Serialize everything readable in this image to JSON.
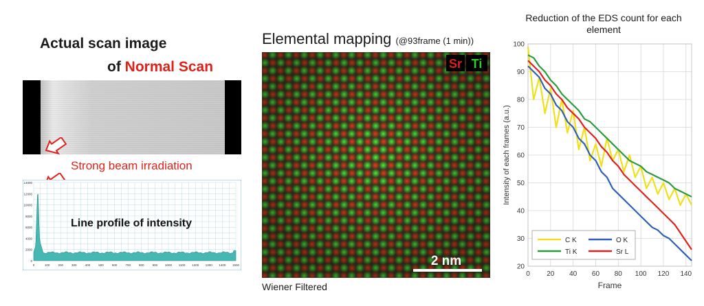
{
  "left": {
    "title_line1": "Actual scan image",
    "title_line2_prefix": "of ",
    "title_line2_highlight": "Normal Scan",
    "beam_label": "Strong beam irradiation",
    "profile_label": "Line profile of intensity",
    "profile_x_ticks": [
      "0",
      "100",
      "200",
      "300",
      "400",
      "500",
      "600",
      "700",
      "800",
      "900",
      "1000",
      "1100",
      "1200",
      "1300",
      "1400",
      "1500"
    ],
    "profile_y_ticks": [
      "0",
      "2000",
      "4000",
      "6000",
      "8000",
      "10000",
      "12000",
      "14000"
    ],
    "colors": {
      "profile_fill": "#46b8b3",
      "highlight": "#e0211b"
    }
  },
  "middle": {
    "title": "Elemental mapping",
    "subtitle": "(@93frame (1 min))",
    "legend_sr": "Sr",
    "legend_ti": "Ti",
    "scale_bar": "2 nm",
    "footer": "Wiener Filtered",
    "colors": {
      "sr": "#e0211b",
      "ti": "#2bd12b"
    }
  },
  "chart_data": {
    "type": "line",
    "title": "Reduction of the EDS count for each element",
    "xlabel": "Frame",
    "ylabel": "Intensity of each frames (a.u.)",
    "xlim": [
      0,
      145
    ],
    "ylim": [
      20,
      100
    ],
    "x_ticks": [
      "0",
      "20",
      "40",
      "60",
      "80",
      "100",
      "120",
      "140"
    ],
    "y_ticks": [
      "20",
      "30",
      "40",
      "50",
      "60",
      "70",
      "80",
      "90",
      "100"
    ],
    "grid": true,
    "legend_position": "bottom-left",
    "series": [
      {
        "name": "C K",
        "color": "#f0e01a",
        "x": [
          0,
          5,
          10,
          15,
          20,
          25,
          30,
          35,
          40,
          45,
          50,
          55,
          60,
          65,
          70,
          75,
          80,
          85,
          90,
          95,
          100,
          105,
          110,
          115,
          120,
          125,
          130,
          135,
          140,
          145
        ],
        "values": [
          99,
          80,
          88,
          75,
          84,
          70,
          80,
          68,
          76,
          62,
          70,
          58,
          64,
          56,
          66,
          58,
          62,
          54,
          60,
          52,
          56,
          48,
          52,
          46,
          50,
          44,
          48,
          42,
          46,
          42
        ]
      },
      {
        "name": "O K",
        "color": "#2f5fb5",
        "x": [
          0,
          5,
          10,
          15,
          20,
          25,
          30,
          35,
          40,
          45,
          50,
          55,
          60,
          65,
          70,
          75,
          80,
          85,
          90,
          95,
          100,
          105,
          110,
          115,
          120,
          125,
          130,
          135,
          140,
          145
        ],
        "values": [
          92,
          90,
          88,
          84,
          82,
          78,
          76,
          72,
          70,
          66,
          64,
          60,
          58,
          54,
          52,
          48,
          46,
          44,
          42,
          40,
          38,
          36,
          34,
          33,
          31,
          30,
          28,
          26,
          24,
          22
        ]
      },
      {
        "name": "Ti K",
        "color": "#2a9a3c",
        "x": [
          0,
          5,
          10,
          15,
          20,
          25,
          30,
          35,
          40,
          45,
          50,
          55,
          60,
          65,
          70,
          75,
          80,
          85,
          90,
          95,
          100,
          105,
          110,
          115,
          120,
          125,
          130,
          135,
          140,
          145
        ],
        "values": [
          96,
          95,
          92,
          90,
          87,
          85,
          82,
          80,
          78,
          76,
          73,
          72,
          70,
          68,
          66,
          64,
          62,
          60,
          58,
          57,
          56,
          54,
          53,
          52,
          51,
          50,
          48,
          47,
          46,
          45
        ]
      },
      {
        "name": "Sr L",
        "color": "#e0211b",
        "x": [
          0,
          5,
          10,
          15,
          20,
          25,
          30,
          35,
          40,
          45,
          50,
          55,
          60,
          65,
          70,
          75,
          80,
          85,
          90,
          95,
          100,
          105,
          110,
          115,
          120,
          125,
          130,
          135,
          140,
          145
        ],
        "values": [
          94,
          92,
          90,
          87,
          85,
          82,
          80,
          77,
          75,
          73,
          70,
          68,
          66,
          63,
          61,
          58,
          56,
          53,
          51,
          49,
          47,
          45,
          43,
          41,
          39,
          37,
          35,
          32,
          29,
          26
        ]
      }
    ]
  }
}
